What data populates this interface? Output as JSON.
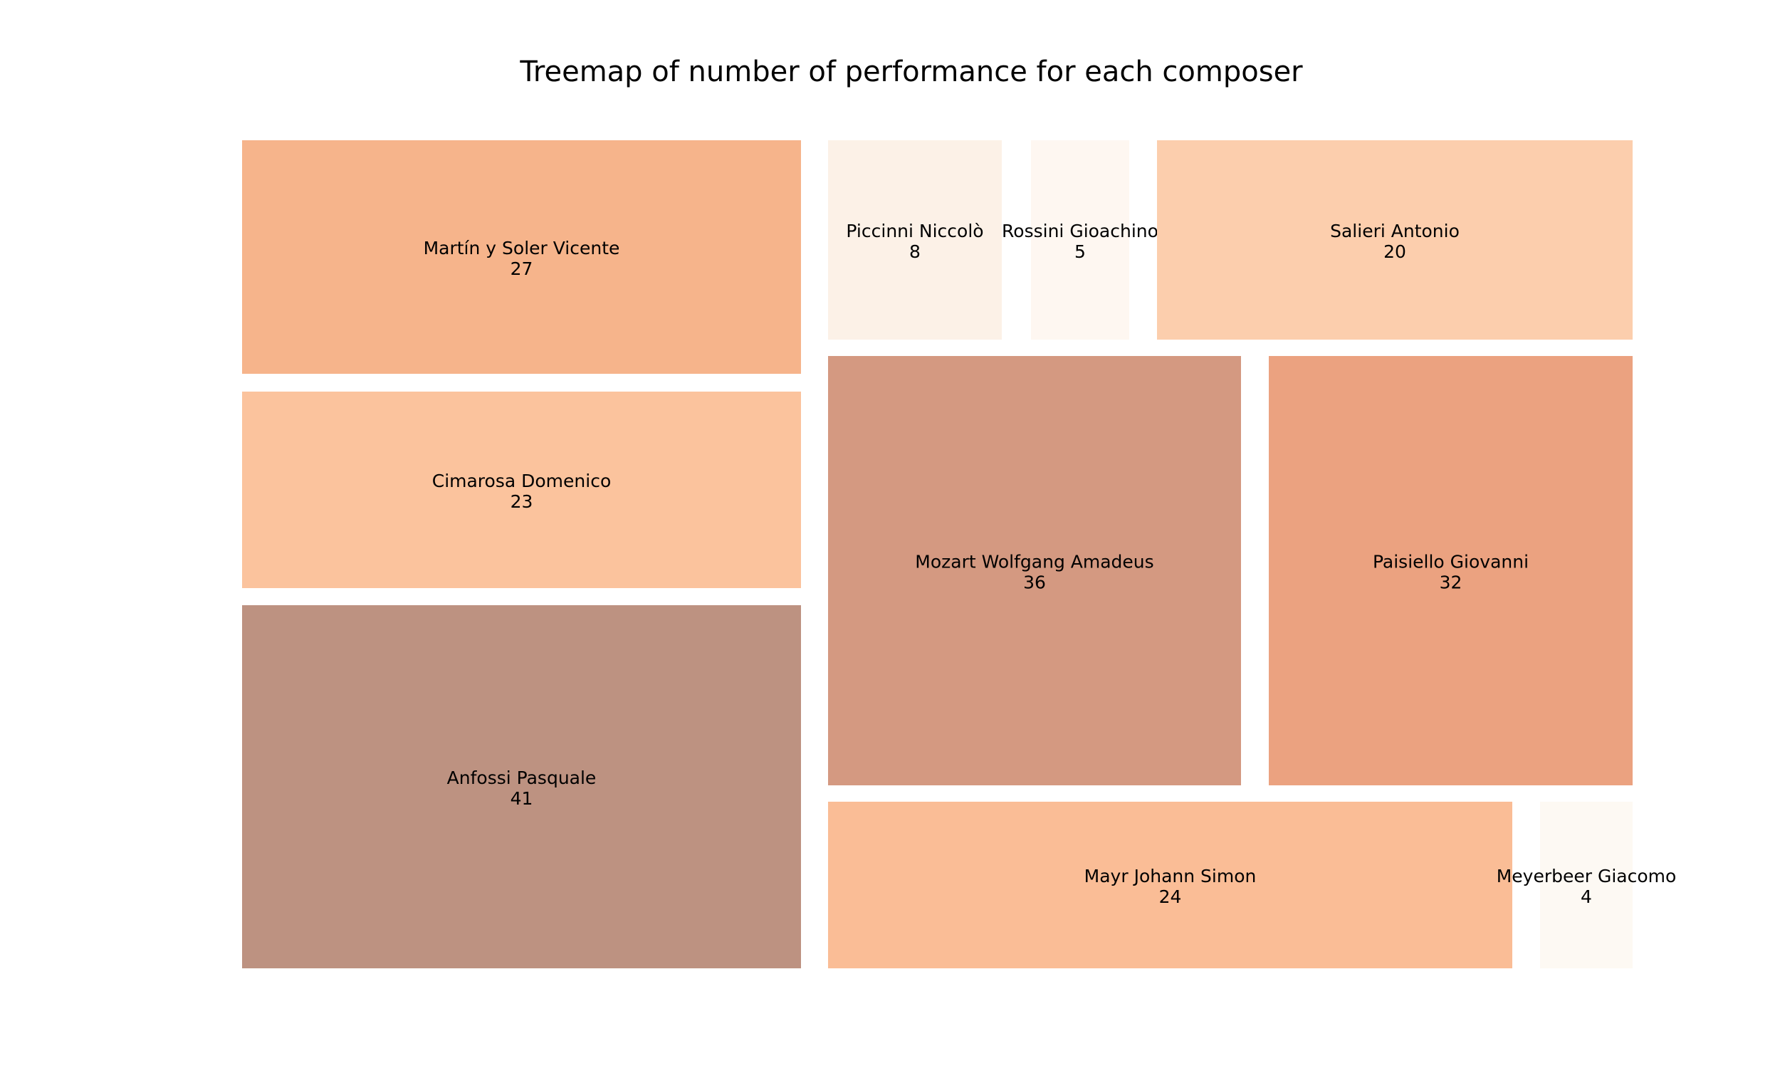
{
  "chart_data": {
    "type": "treemap",
    "title": "Treemap of number of performance for each composer",
    "items": [
      {
        "name": "Martín y Soler Vicente",
        "value": 27,
        "color": "#f6b48b"
      },
      {
        "name": "Cimarosa Domenico",
        "value": 23,
        "color": "#fbc39d"
      },
      {
        "name": "Anfossi Pasquale",
        "value": 41,
        "color": "#bd9281"
      },
      {
        "name": "Piccinni Niccolò",
        "value": 8,
        "color": "#fcf1e7"
      },
      {
        "name": "Rossini Gioachino",
        "value": 5,
        "color": "#fef7f1"
      },
      {
        "name": "Salieri Antonio",
        "value": 20,
        "color": "#fccead"
      },
      {
        "name": "Mozart Wolfgang Amadeus",
        "value": 36,
        "color": "#d49981"
      },
      {
        "name": "Paisiello Giovanni",
        "value": 32,
        "color": "#eba280"
      },
      {
        "name": "Mayr Johann Simon",
        "value": 24,
        "color": "#fabd96"
      },
      {
        "name": "Meyerbeer Giacomo",
        "value": 4,
        "color": "#fdf9f3"
      }
    ]
  }
}
